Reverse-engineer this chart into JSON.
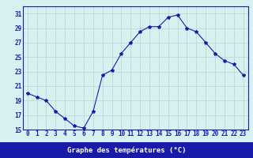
{
  "hours": [
    0,
    1,
    2,
    3,
    4,
    5,
    6,
    7,
    8,
    9,
    10,
    11,
    12,
    13,
    14,
    15,
    16,
    17,
    18,
    19,
    20,
    21,
    22,
    23
  ],
  "temperatures": [
    20.0,
    19.5,
    19.0,
    17.5,
    16.5,
    15.5,
    15.2,
    17.5,
    22.5,
    23.2,
    25.5,
    27.0,
    28.5,
    29.2,
    29.2,
    30.5,
    30.8,
    29.0,
    28.5,
    27.0,
    25.5,
    24.5,
    24.0,
    22.5
  ],
  "line_color": "#1a1aaa",
  "marker": "*",
  "marker_size": 3,
  "bg_color": "#d8f0f0",
  "grid_color": "#b8d4d4",
  "xlabel": "Graphe des températures (°C)",
  "xlabel_bg": "#1a1aaa",
  "xlabel_color": "#ffffff",
  "ylim": [
    15,
    32
  ],
  "yticks": [
    15,
    17,
    19,
    21,
    23,
    25,
    27,
    29,
    31
  ],
  "xlim": [
    -0.5,
    23.5
  ],
  "xticks": [
    0,
    1,
    2,
    3,
    4,
    5,
    6,
    7,
    8,
    9,
    10,
    11,
    12,
    13,
    14,
    15,
    16,
    17,
    18,
    19,
    20,
    21,
    22,
    23
  ],
  "tick_fontsize": 5.5,
  "xlabel_fontsize": 6.5,
  "linewidth": 0.8
}
